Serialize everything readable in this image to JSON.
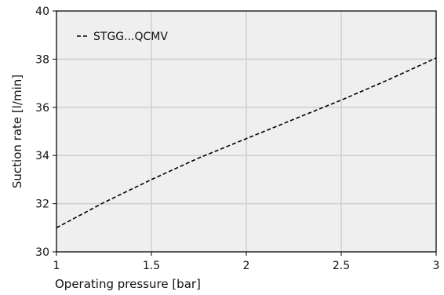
{
  "chart_data": {
    "type": "line",
    "xlabel": "Operating pressure [bar]",
    "ylabel": "Suction rate [l/min]",
    "xlim": [
      1,
      3
    ],
    "ylim": [
      30,
      40
    ],
    "xticks": [
      1,
      1.5,
      2,
      2.5,
      3
    ],
    "xtick_labels": [
      "1",
      "1.5",
      "2",
      "2.5",
      "3"
    ],
    "yticks": [
      30,
      32,
      34,
      36,
      38,
      40
    ],
    "ytick_labels": [
      "30",
      "32",
      "34",
      "36",
      "38",
      "40"
    ],
    "grid": true,
    "legend_position": "top-left",
    "series": [
      {
        "name": "STGG...QCMV",
        "line_style": "dashed",
        "color": "#000000",
        "x": [
          1,
          1.25,
          1.5,
          1.75,
          2,
          2.25,
          2.5,
          2.75,
          3
        ],
        "y": [
          31.0,
          32.05,
          33.0,
          33.9,
          34.7,
          35.5,
          36.3,
          37.15,
          38.05
        ]
      }
    ]
  },
  "colors": {
    "plot_background": "#efefef",
    "grid": "#cfcfcf",
    "axis": "#000000"
  }
}
